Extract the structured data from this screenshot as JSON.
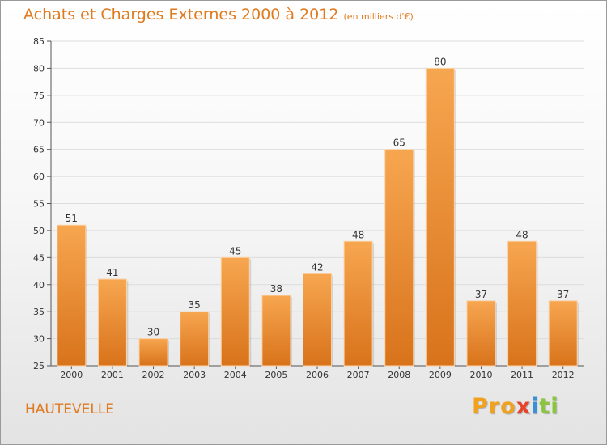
{
  "title": "Achats et Charges Externes 2000 à 2012",
  "unit": "(en milliers d'€)",
  "location": "HAUTEVELLE",
  "brand": "Proxiti",
  "colors": {
    "accent": "#e07a1f",
    "bar_top": "#f7a650",
    "bar_bottom": "#d8731b",
    "brand": [
      "#f0a21f",
      "#3a8fd6",
      "#8bc53f",
      "#e8432b"
    ]
  },
  "chart_data": {
    "type": "bar",
    "categories": [
      "2000",
      "2001",
      "2002",
      "2003",
      "2004",
      "2005",
      "2006",
      "2007",
      "2008",
      "2009",
      "2010",
      "2011",
      "2012"
    ],
    "values": [
      51,
      41,
      30,
      35,
      45,
      38,
      42,
      48,
      65,
      80,
      37,
      48,
      37
    ],
    "ylim": [
      25,
      85
    ],
    "yticks": [
      25,
      30,
      35,
      40,
      45,
      50,
      55,
      60,
      65,
      70,
      75,
      80,
      85
    ],
    "grid": true,
    "data_labels": true
  }
}
